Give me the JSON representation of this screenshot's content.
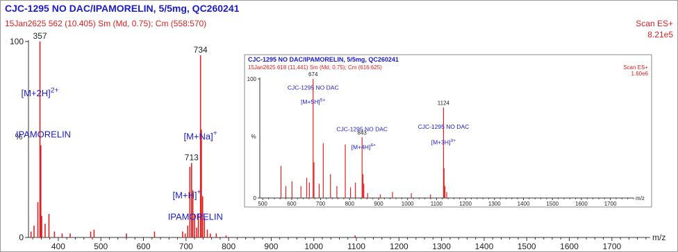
{
  "header": {
    "title": "CJC-1295 NO DAC/IPAMORELIN, 5/5mg, QC260241",
    "subtitle": "15Jan2625  562 (10.405) Sm (Md, 0.75); Cm (558:570)",
    "scan_mode": "Scan ES+",
    "intensity": "8.21e5"
  },
  "colors": {
    "title": "#1a1ac8",
    "subtitle": "#e02020",
    "peaks": "#e02020",
    "annotation": "#1a1ac8"
  },
  "chart_data": [
    {
      "type": "bar",
      "xlabel": "m/z",
      "ylabel": "%",
      "xlim": [
        330,
        1790
      ],
      "ylim": [
        0,
        100
      ],
      "y_ticks": [
        {
          "value": 0,
          "label": "0"
        },
        {
          "value": 100,
          "label": "100"
        }
      ],
      "x_ticks": [
        400,
        500,
        600,
        700,
        800,
        900,
        1000,
        1100,
        1200,
        1300,
        1400,
        1500,
        1600,
        1700
      ],
      "peaks": [
        {
          "mz": 336,
          "intensity": 3
        },
        {
          "mz": 343,
          "intensity": 6
        },
        {
          "mz": 352,
          "intensity": 18
        },
        {
          "mz": 357,
          "intensity": 100
        },
        {
          "mz": 359,
          "intensity": 47
        },
        {
          "mz": 361,
          "intensity": 11
        },
        {
          "mz": 369,
          "intensity": 7
        },
        {
          "mz": 378,
          "intensity": 12
        },
        {
          "mz": 391,
          "intensity": 3
        },
        {
          "mz": 409,
          "intensity": 2
        },
        {
          "mz": 428,
          "intensity": 2
        },
        {
          "mz": 476,
          "intensity": 3
        },
        {
          "mz": 484,
          "intensity": 4
        },
        {
          "mz": 560,
          "intensity": 2
        },
        {
          "mz": 626,
          "intensity": 3
        },
        {
          "mz": 692,
          "intensity": 3
        },
        {
          "mz": 698,
          "intensity": 2
        },
        {
          "mz": 704,
          "intensity": 6
        },
        {
          "mz": 709,
          "intensity": 36
        },
        {
          "mz": 713,
          "intensity": 38
        },
        {
          "mz": 716,
          "intensity": 24
        },
        {
          "mz": 720,
          "intensity": 12
        },
        {
          "mz": 725,
          "intensity": 5
        },
        {
          "mz": 729,
          "intensity": 12
        },
        {
          "mz": 734,
          "intensity": 93
        },
        {
          "mz": 736,
          "intensity": 55
        },
        {
          "mz": 739,
          "intensity": 21
        },
        {
          "mz": 743,
          "intensity": 10
        },
        {
          "mz": 750,
          "intensity": 4
        },
        {
          "mz": 757,
          "intensity": 2
        },
        {
          "mz": 771,
          "intensity": 2
        },
        {
          "mz": 794,
          "intensity": 1
        },
        {
          "mz": 1097,
          "intensity": 1
        }
      ],
      "peak_labels": [
        {
          "mz": 357,
          "text": "357"
        },
        {
          "mz": 734,
          "text": "734"
        },
        {
          "mz": 713,
          "text": "713"
        }
      ],
      "annotations": [
        {
          "id": "a1",
          "main": "[M+2H]",
          "sup": "2+",
          "mz": 357,
          "y": 72
        },
        {
          "id": "a2",
          "main": "IPAMORELIN",
          "sup": "",
          "mz": 365,
          "y": 51
        },
        {
          "id": "a3",
          "main": "[M+Na]",
          "sup": "+",
          "mz": 734,
          "y": 50
        },
        {
          "id": "a4",
          "main": "[M+H]",
          "sup": "+",
          "mz": 702,
          "y": 20
        },
        {
          "id": "a5",
          "main": "IPAMORELIN",
          "sup": "",
          "mz": 722,
          "y": 9
        }
      ]
    },
    {
      "type": "bar",
      "title": "CJC-1295 NO DAC/IPAMORELIN, 5/5mg, QC260241",
      "subtitle": "15Jan2625  618 (11.441) Sm (Md, 0.75); Cm (616:625)",
      "scan_mode": "Scan ES+",
      "intensity": "1.60e6",
      "xlabel": "m/z",
      "ylabel": "%",
      "xlim": [
        490,
        1780
      ],
      "ylim": [
        0,
        100
      ],
      "y_ticks": [
        {
          "value": 0,
          "label": "0"
        },
        {
          "value": 100,
          "label": "100"
        }
      ],
      "x_ticks": [
        500,
        600,
        700,
        800,
        900,
        1000,
        1100,
        1200,
        1300,
        1400,
        1500,
        1600,
        1700
      ],
      "peaks": [
        {
          "mz": 563,
          "intensity": 27
        },
        {
          "mz": 580,
          "intensity": 10
        },
        {
          "mz": 601,
          "intensity": 14
        },
        {
          "mz": 632,
          "intensity": 10
        },
        {
          "mz": 652,
          "intensity": 17
        },
        {
          "mz": 661,
          "intensity": 13
        },
        {
          "mz": 674,
          "intensity": 100
        },
        {
          "mz": 677,
          "intensity": 30
        },
        {
          "mz": 695,
          "intensity": 12
        },
        {
          "mz": 709,
          "intensity": 46
        },
        {
          "mz": 734,
          "intensity": 20
        },
        {
          "mz": 756,
          "intensity": 10
        },
        {
          "mz": 785,
          "intensity": 45
        },
        {
          "mz": 803,
          "intensity": 9
        },
        {
          "mz": 820,
          "intensity": 13
        },
        {
          "mz": 843,
          "intensity": 51
        },
        {
          "mz": 846,
          "intensity": 20
        },
        {
          "mz": 849,
          "intensity": 12
        },
        {
          "mz": 862,
          "intensity": 4
        },
        {
          "mz": 906,
          "intensity": 3
        },
        {
          "mz": 948,
          "intensity": 5
        },
        {
          "mz": 1013,
          "intensity": 4
        },
        {
          "mz": 1079,
          "intensity": 3
        },
        {
          "mz": 1124,
          "intensity": 76
        },
        {
          "mz": 1126,
          "intensity": 25
        },
        {
          "mz": 1129,
          "intensity": 10
        },
        {
          "mz": 1135,
          "intensity": 5
        }
      ],
      "peak_labels": [
        {
          "mz": 674,
          "text": "674"
        },
        {
          "mz": 843,
          "text": "843"
        },
        {
          "mz": 1124,
          "text": "1124"
        }
      ],
      "annotations": [
        {
          "id": "b1",
          "main": "CJC-1295 NO DAC",
          "sup": "",
          "mz": 674,
          "y": 91
        },
        {
          "id": "b2",
          "main": "[M+5H]",
          "sup": "5+",
          "mz": 674,
          "y": 79
        },
        {
          "id": "b3",
          "main": "CJC-1295 NO DAC",
          "sup": "",
          "mz": 843,
          "y": 56
        },
        {
          "id": "b4",
          "main": "[M+4H]",
          "sup": "4+",
          "mz": 848,
          "y": 41
        },
        {
          "id": "b5",
          "main": "CJC-1295 NO DAC",
          "sup": "",
          "mz": 1124,
          "y": 58
        },
        {
          "id": "b6",
          "main": "[M+3H]",
          "sup": "3+",
          "mz": 1124,
          "y": 45
        }
      ]
    }
  ]
}
